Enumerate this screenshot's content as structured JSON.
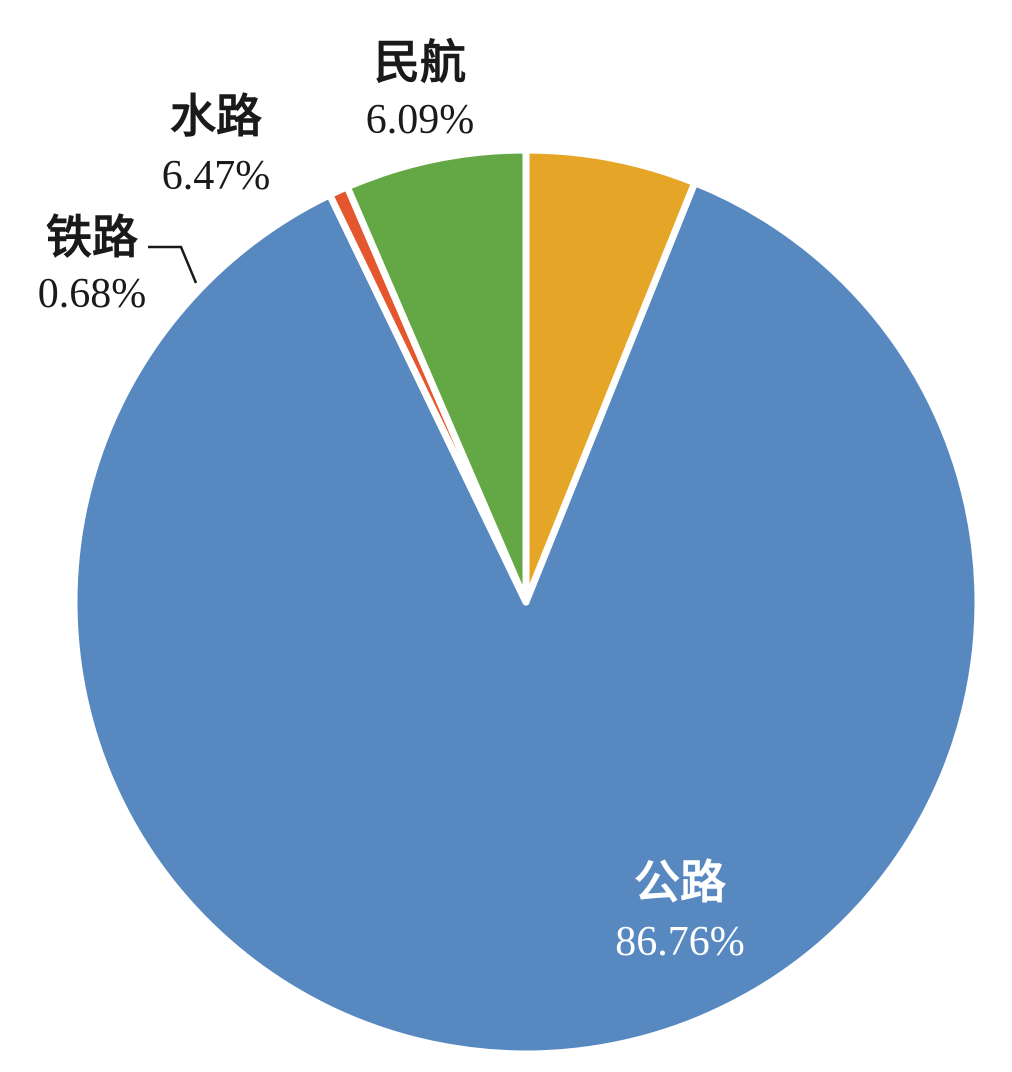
{
  "chart_data": {
    "type": "pie",
    "title": "",
    "slices": [
      {
        "name": "民航",
        "value": 6.09,
        "label": "6.09%",
        "color": "#E5A526"
      },
      {
        "name": "公路",
        "value": 86.76,
        "label": "86.76%",
        "color": "#5788C0"
      },
      {
        "name": "铁路",
        "value": 0.68,
        "label": "0.68%",
        "color": "#E4572E"
      },
      {
        "name": "水路",
        "value": 6.47,
        "label": "6.47%",
        "color": "#64A745"
      }
    ],
    "start_angle_deg": 0,
    "direction": "clockwise",
    "separator_color": "#FFFFFF",
    "label_colors": {
      "outside": "#1A1A1A",
      "inside": "#FFFFFF"
    }
  }
}
